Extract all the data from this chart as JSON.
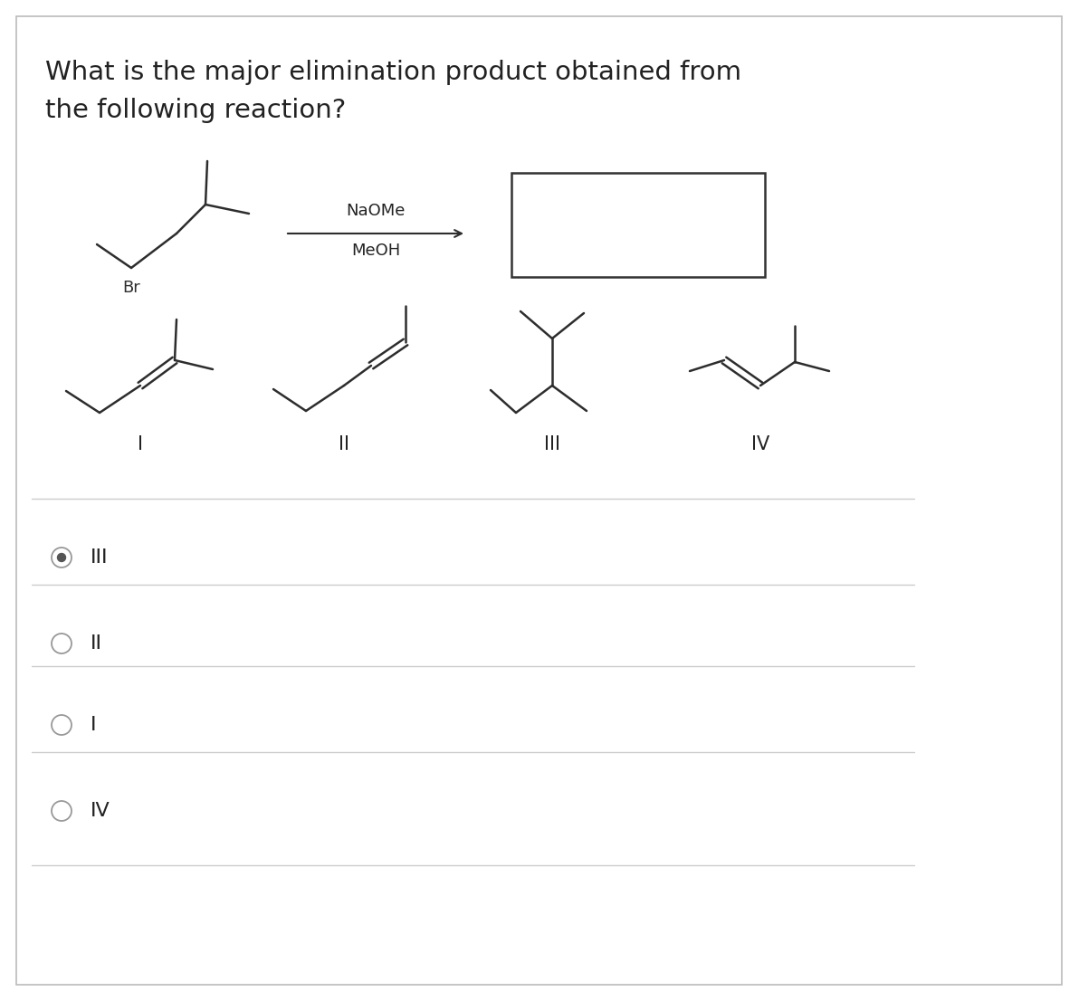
{
  "title_line1": "What is the major elimination product obtained from",
  "title_line2": "the following reaction?",
  "title_fontsize": 21,
  "bg_color": "#ffffff",
  "molecule_color": "#2d2d2d",
  "options": [
    "III",
    "II",
    "I",
    "IV"
  ],
  "selected_option": 0,
  "reagent_above": "NaOMe",
  "reagent_below": "MeOH",
  "border_color": "#aaaaaa",
  "sep_color": "#cccccc"
}
